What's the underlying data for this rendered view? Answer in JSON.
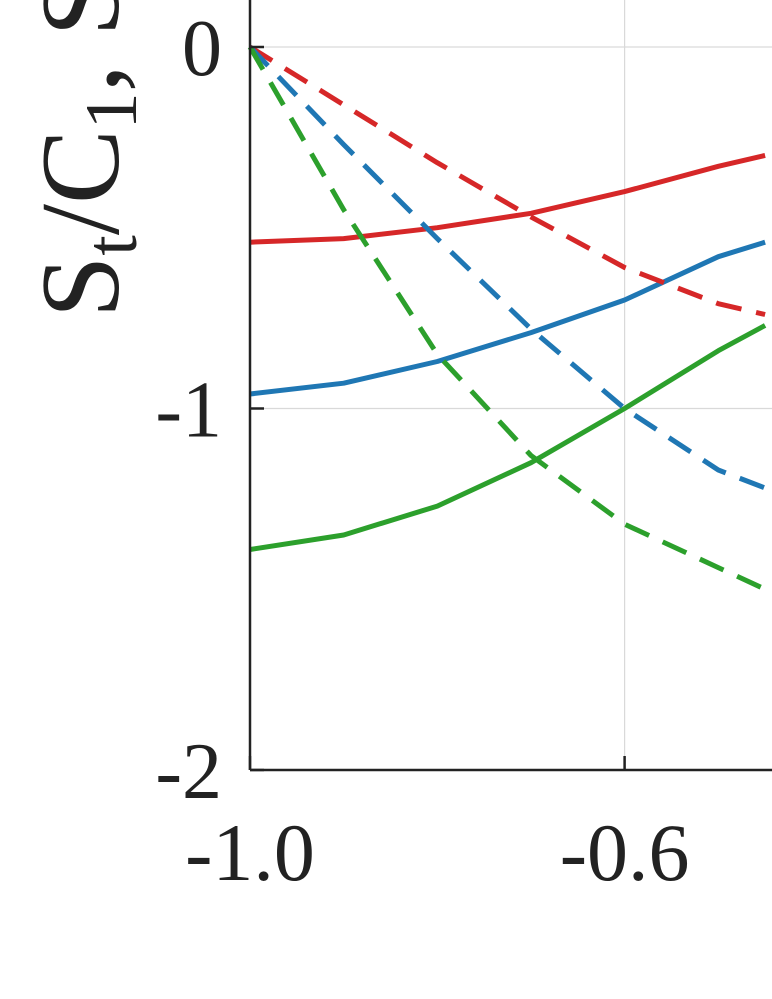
{
  "chart_data": {
    "type": "line",
    "title": "",
    "xlabel": "",
    "ylabel": {
      "line1": "S",
      "line1_sub": "t",
      "sep": "/C",
      "sep_sub": "1",
      "tail": ",  S"
    },
    "xlim": [
      -1.0,
      -0.38
    ],
    "ylim": [
      -2,
      0.13
    ],
    "xticks": [
      {
        "value": -1.0,
        "label": "-1.0"
      },
      {
        "value": -0.6,
        "label": "-0.6"
      }
    ],
    "yticks": [
      {
        "value": 0,
        "label": "0"
      },
      {
        "value": -1,
        "label": "-1"
      },
      {
        "value": -2,
        "label": "-2"
      }
    ],
    "grid": true,
    "series": [
      {
        "color": "#d62728",
        "dash": false,
        "x": [
          -1.0,
          -0.9,
          -0.8,
          -0.7,
          -0.6,
          -0.5,
          -0.45
        ],
        "y": [
          -0.54,
          -0.53,
          -0.5,
          -0.46,
          -0.4,
          -0.33,
          -0.3
        ]
      },
      {
        "color": "#1f77b4",
        "dash": false,
        "x": [
          -1.0,
          -0.9,
          -0.8,
          -0.7,
          -0.6,
          -0.5,
          -0.45
        ],
        "y": [
          -0.96,
          -0.93,
          -0.87,
          -0.79,
          -0.7,
          -0.58,
          -0.54
        ]
      },
      {
        "color": "#2ca02c",
        "dash": false,
        "x": [
          -1.0,
          -0.9,
          -0.8,
          -0.7,
          -0.6,
          -0.5,
          -0.45
        ],
        "y": [
          -1.39,
          -1.35,
          -1.27,
          -1.15,
          -1.0,
          -0.84,
          -0.77
        ]
      },
      {
        "color": "#d62728",
        "dash": true,
        "x": [
          -1.0,
          -0.9,
          -0.8,
          -0.7,
          -0.6,
          -0.5,
          -0.45
        ],
        "y": [
          0.0,
          -0.16,
          -0.32,
          -0.47,
          -0.61,
          -0.71,
          -0.74
        ]
      },
      {
        "color": "#1f77b4",
        "dash": true,
        "x": [
          -1.0,
          -0.9,
          -0.8,
          -0.7,
          -0.6,
          -0.5,
          -0.45
        ],
        "y": [
          0.0,
          -0.27,
          -0.53,
          -0.78,
          -1.0,
          -1.17,
          -1.22
        ]
      },
      {
        "color": "#2ca02c",
        "dash": true,
        "x": [
          -1.0,
          -0.9,
          -0.8,
          -0.7,
          -0.6,
          -0.5,
          -0.45
        ],
        "y": [
          0.0,
          -0.45,
          -0.85,
          -1.13,
          -1.32,
          -1.44,
          -1.5
        ]
      }
    ]
  }
}
